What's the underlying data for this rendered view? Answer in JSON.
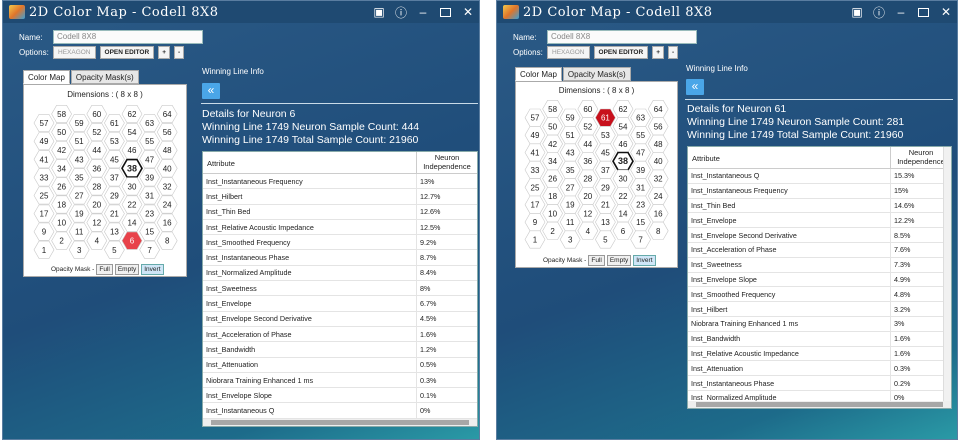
{
  "windows": [
    {
      "title": "2D Color Map - Codell 8X8",
      "name_label": "Name:",
      "name_value": "Codell 8X8",
      "options_label": "Options:",
      "hexagon_label": "HEXAGON",
      "open_editor_label": "OPEN EDITOR",
      "plus_label": "+",
      "minus_label": "-",
      "tab_colormap": "Color Map",
      "tab_opacity": "Opacity Mask(s)",
      "dimensions": "Dimensions : ( 8 x 8 )",
      "hex_numbers": [
        [
          57,
          58,
          59,
          60,
          61,
          62,
          63,
          64
        ],
        [
          49,
          50,
          51,
          52,
          53,
          54,
          55,
          56
        ],
        [
          41,
          42,
          43,
          44,
          45,
          46,
          47,
          48
        ],
        [
          33,
          34,
          35,
          36,
          37,
          38,
          39,
          40
        ],
        [
          25,
          26,
          27,
          28,
          29,
          30,
          31,
          32
        ],
        [
          17,
          18,
          19,
          20,
          21,
          22,
          23,
          24
        ],
        [
          9,
          10,
          11,
          12,
          13,
          14,
          15,
          16
        ],
        [
          1,
          2,
          3,
          4,
          5,
          6,
          7,
          8
        ]
      ],
      "winner": 6,
      "bold_hex": 38,
      "opacity_label": "Opacity Mask -",
      "full_label": "Full",
      "empty_label": "Empty",
      "invert_label": "Invert",
      "winning_line_label": "Winning Line Info",
      "back_icon": "double-chevron-left-icon",
      "details_title": "Details for Neuron 6",
      "neuron_sample_count": "Winning Line 1749 Neuron Sample Count: 444",
      "total_sample_count": "Winning Line 1749 Total Sample Count: 21960",
      "col_attribute": "Attribute",
      "col_neuron_line1": "Neuron",
      "col_neuron_line2": "Independence",
      "rows": [
        {
          "attr": "Inst_Instantaneous Frequency",
          "val": "13%"
        },
        {
          "attr": "Inst_Hilbert",
          "val": "12.7%"
        },
        {
          "attr": "Inst_Thin Bed",
          "val": "12.6%"
        },
        {
          "attr": "Inst_Relative Acoustic Impedance",
          "val": "12.5%"
        },
        {
          "attr": "Inst_Smoothed Frequency",
          "val": "9.2%"
        },
        {
          "attr": "Inst_Instantaneous Phase",
          "val": "8.7%"
        },
        {
          "attr": "Inst_Normalized Amplitude",
          "val": "8.4%"
        },
        {
          "attr": "Inst_Sweetness",
          "val": "8%"
        },
        {
          "attr": "Inst_Envelope",
          "val": "6.7%"
        },
        {
          "attr": "Inst_Envelope Second Derivative",
          "val": "4.5%"
        },
        {
          "attr": "Inst_Acceleration of Phase",
          "val": "1.6%"
        },
        {
          "attr": "Inst_Bandwidth",
          "val": "1.2%"
        },
        {
          "attr": "Inst_Attenuation",
          "val": "0.5%"
        },
        {
          "attr": "Niobrara Training Enhanced 1 ms",
          "val": "0.3%"
        },
        {
          "attr": "Inst_Envelope Slope",
          "val": "0.1%"
        },
        {
          "attr": "Inst_Instantaneous Q",
          "val": "0%"
        }
      ]
    },
    {
      "title": "2D Color Map - Codell 8X8",
      "name_label": "Name:",
      "name_value": "Codell 8X8",
      "options_label": "Options:",
      "hexagon_label": "HEXAGON",
      "open_editor_label": "OPEN EDITOR",
      "plus_label": "+",
      "minus_label": "-",
      "tab_colormap": "Color Map",
      "tab_opacity": "Opacity Mask(s)",
      "dimensions": "Dimensions : ( 8 x 8 )",
      "hex_numbers": [
        [
          57,
          58,
          59,
          60,
          61,
          62,
          63,
          64
        ],
        [
          49,
          50,
          51,
          52,
          53,
          54,
          55,
          56
        ],
        [
          41,
          42,
          43,
          44,
          45,
          46,
          47,
          48
        ],
        [
          33,
          34,
          35,
          36,
          37,
          38,
          39,
          40
        ],
        [
          25,
          26,
          27,
          28,
          29,
          30,
          31,
          32
        ],
        [
          17,
          18,
          19,
          20,
          21,
          22,
          23,
          24
        ],
        [
          9,
          10,
          11,
          12,
          13,
          14,
          15,
          16
        ],
        [
          1,
          2,
          3,
          4,
          5,
          6,
          7,
          8
        ]
      ],
      "winner": 61,
      "bold_hex": 38,
      "opacity_label": "Opacity Mask -",
      "full_label": "Full",
      "empty_label": "Empty",
      "invert_label": "Invert",
      "winning_line_label": "Winning Line Info",
      "back_icon": "double-chevron-left-icon",
      "details_title": "Details for Neuron 61",
      "neuron_sample_count": "Winning Line 1749 Neuron Sample Count: 281",
      "total_sample_count": "Winning Line 1749 Total Sample Count: 21960",
      "col_attribute": "Attribute",
      "col_neuron_line1": "Neuron",
      "col_neuron_line2": "Independence",
      "rows": [
        {
          "attr": "Inst_Instantaneous Q",
          "val": "15.3%"
        },
        {
          "attr": "Inst_Instantaneous Frequency",
          "val": "15%"
        },
        {
          "attr": "Inst_Thin Bed",
          "val": "14.6%"
        },
        {
          "attr": "Inst_Envelope",
          "val": "12.2%"
        },
        {
          "attr": "Inst_Envelope Second Derivative",
          "val": "8.5%"
        },
        {
          "attr": "Inst_Acceleration of Phase",
          "val": "7.6%"
        },
        {
          "attr": "Inst_Sweetness",
          "val": "7.3%"
        },
        {
          "attr": "Inst_Envelope Slope",
          "val": "4.9%"
        },
        {
          "attr": "Inst_Smoothed Frequency",
          "val": "4.8%"
        },
        {
          "attr": "Inst_Hilbert",
          "val": "3.2%"
        },
        {
          "attr": "Niobrara Training Enhanced 1 ms",
          "val": "3%"
        },
        {
          "attr": "Inst_Bandwidth",
          "val": "1.6%"
        },
        {
          "attr": "Inst_Relative Acoustic Impedance",
          "val": "1.6%"
        },
        {
          "attr": "Inst_Attenuation",
          "val": "0.3%"
        },
        {
          "attr": "Inst_Instantaneous Phase",
          "val": "0.2%"
        },
        {
          "attr": "Inst_Normalized Amplitude",
          "val": "0%"
        }
      ]
    }
  ],
  "colors": {
    "winner_fill": "#e8424a",
    "winner_fill_dark": "#c8101c",
    "titlebar": "#1f4a72",
    "nav_button": "#4aa6e8"
  }
}
